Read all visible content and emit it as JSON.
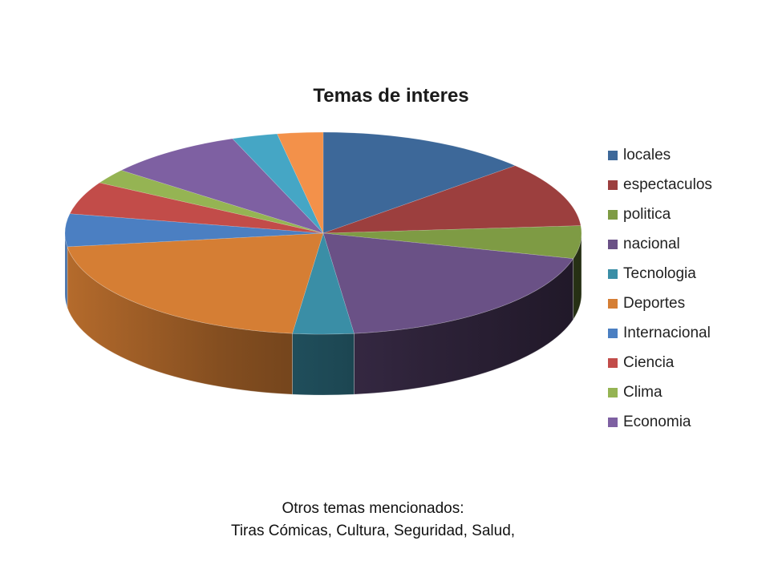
{
  "chart_data": {
    "type": "pie",
    "title": "Temas de interes",
    "legend_position": "right",
    "categories": [
      "locales",
      "espectaculos",
      "politica",
      "nacional",
      "Tecnologia",
      "Deportes",
      "Internacional",
      "Ciencia",
      "Clima",
      "Economia",
      "",
      ""
    ],
    "values": [
      14,
      11,
      5.5,
      20,
      4,
      22,
      5.5,
      5.5,
      2.5,
      9,
      3,
      3
    ],
    "colors": [
      "#3d6899",
      "#9c3f3e",
      "#7e9b44",
      "#6a5186",
      "#3a8ea6",
      "#d57e34",
      "#4b7fc2",
      "#c24c49",
      "#95b453",
      "#7e60a2",
      "#45a6c5",
      "#f3914a"
    ],
    "legend_entries": [
      "locales",
      "espectaculos",
      "politica",
      "nacional",
      "Tecnologia",
      "Deportes",
      "Internacional",
      "Ciencia",
      "Clima",
      "Economia"
    ]
  },
  "footnote": {
    "line1": "Otros temas mencionados:",
    "line2": "Tiras Cómicas, Cultura, Seguridad, Salud,"
  }
}
